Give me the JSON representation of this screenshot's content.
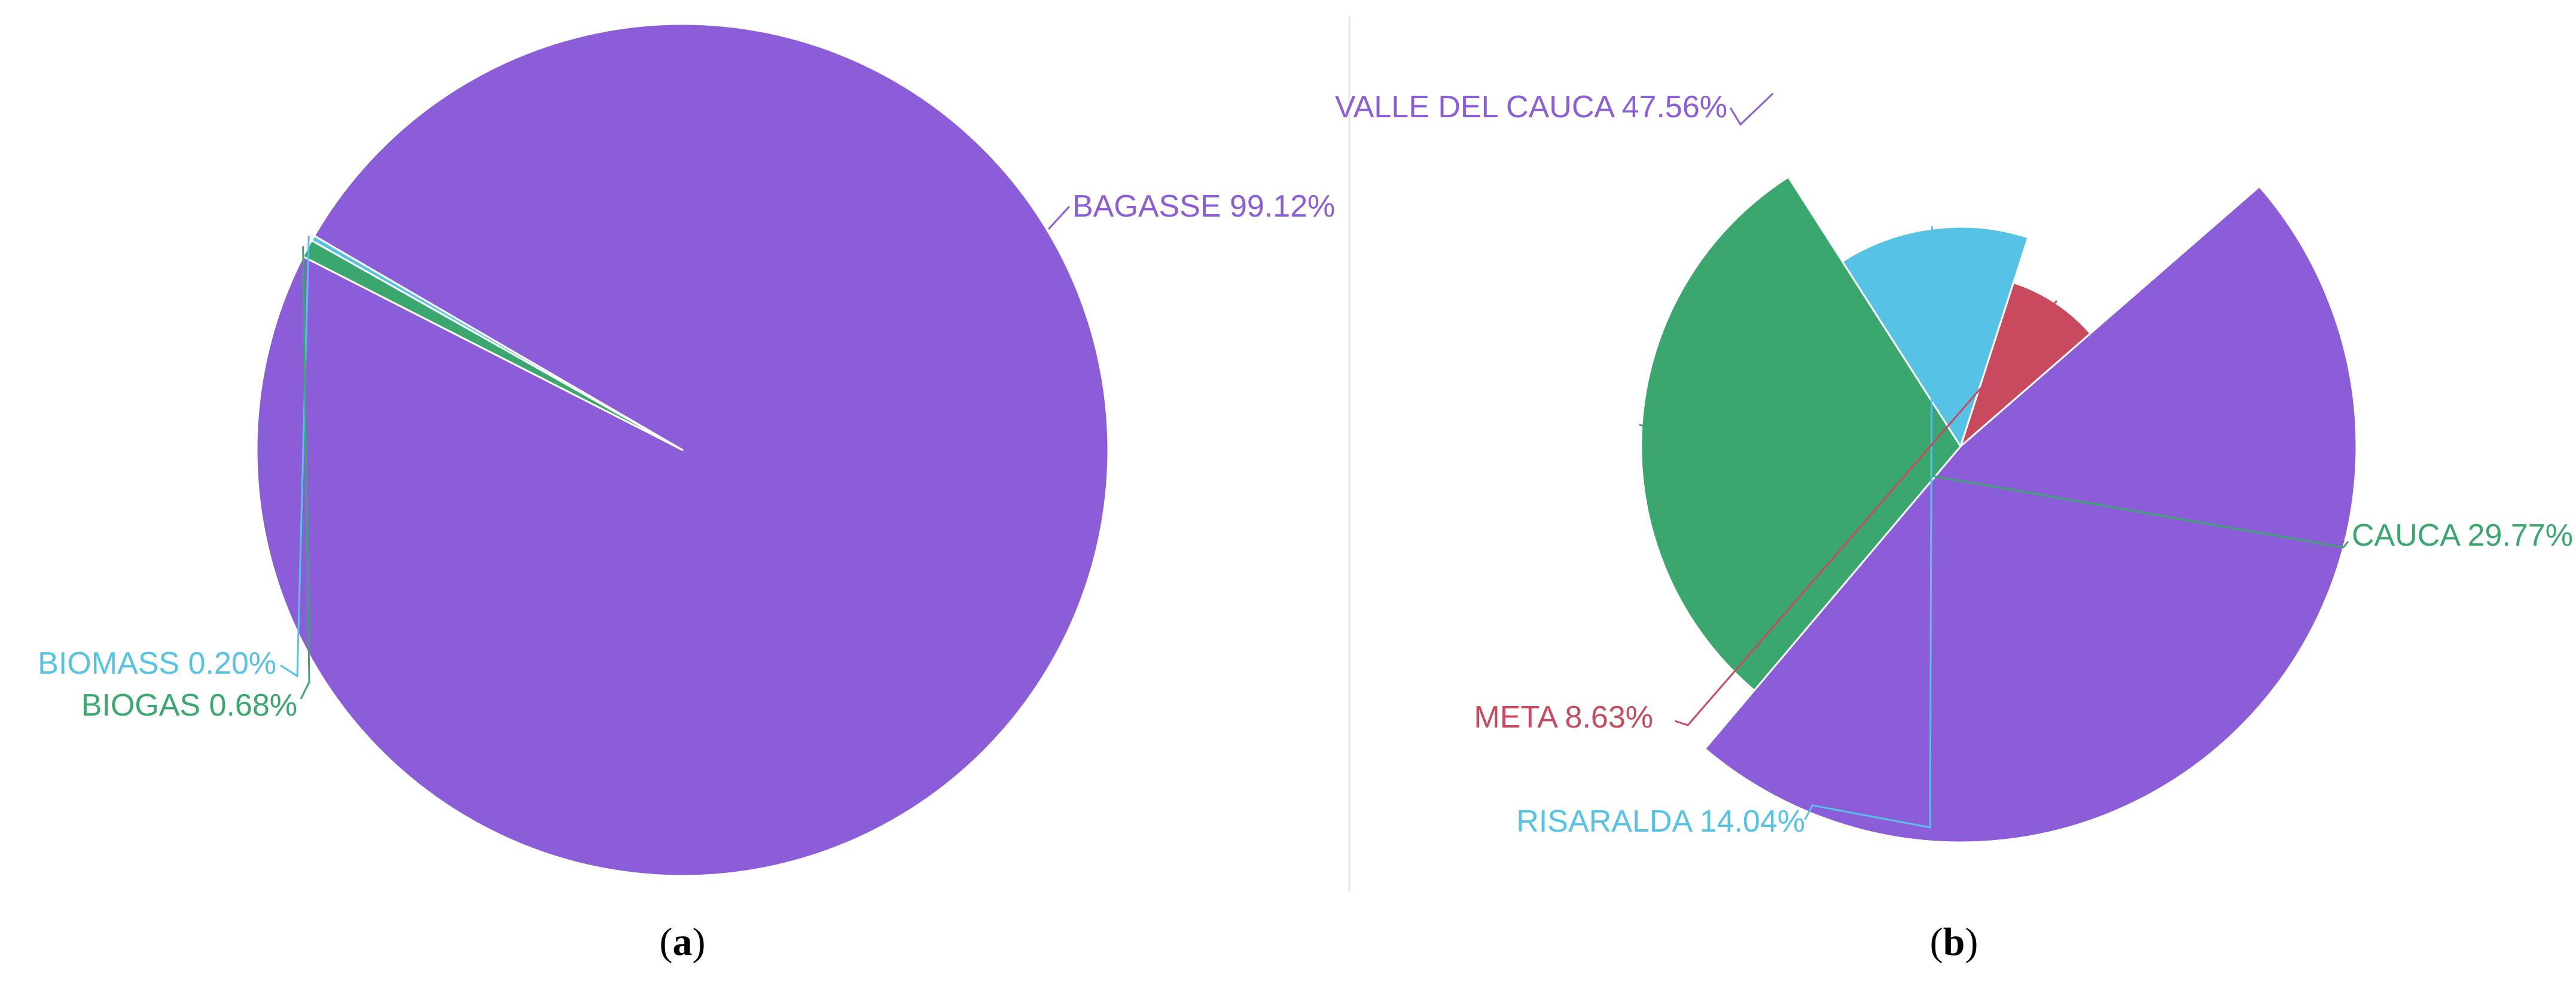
{
  "colors": {
    "purple": "#8B5DD9",
    "green": "#3AA86E",
    "cyan": "#56C3E6",
    "red": "#C9495E",
    "divider": "#e6e6e6"
  },
  "chart_data": [
    {
      "type": "pie",
      "panel_label": "a",
      "start_angle_deg": 153,
      "direction": "counterclockwise",
      "series": [
        {
          "name": "BAGASSE",
          "value": 99.12,
          "label": "BAGASSE 99.12%",
          "color": "#8B5DD9"
        },
        {
          "name": "BIOMASS",
          "value": 0.2,
          "label": "BIOMASS 0.20%",
          "color": "#56C3E6"
        },
        {
          "name": "BIOGAS",
          "value": 0.68,
          "label": "BIOGAS 0.68%",
          "color": "#3AA86E"
        }
      ]
    },
    {
      "type": "pie",
      "variant": "rose (radius scaled by value)",
      "panel_label": "b",
      "series": [
        {
          "name": "VALLE DEL CAUCA",
          "value": 47.56,
          "label": "VALLE DEL CAUCA 47.56%",
          "color": "#8B5DD9"
        },
        {
          "name": "CAUCA",
          "value": 29.77,
          "label": "CAUCA 29.77%",
          "color": "#3AA86E"
        },
        {
          "name": "RISARALDA",
          "value": 14.04,
          "label": "RISARALDA 14.04%",
          "color": "#56C3E6"
        },
        {
          "name": "META",
          "value": 8.63,
          "label": "META 8.63%",
          "color": "#C9495E"
        }
      ]
    }
  ]
}
